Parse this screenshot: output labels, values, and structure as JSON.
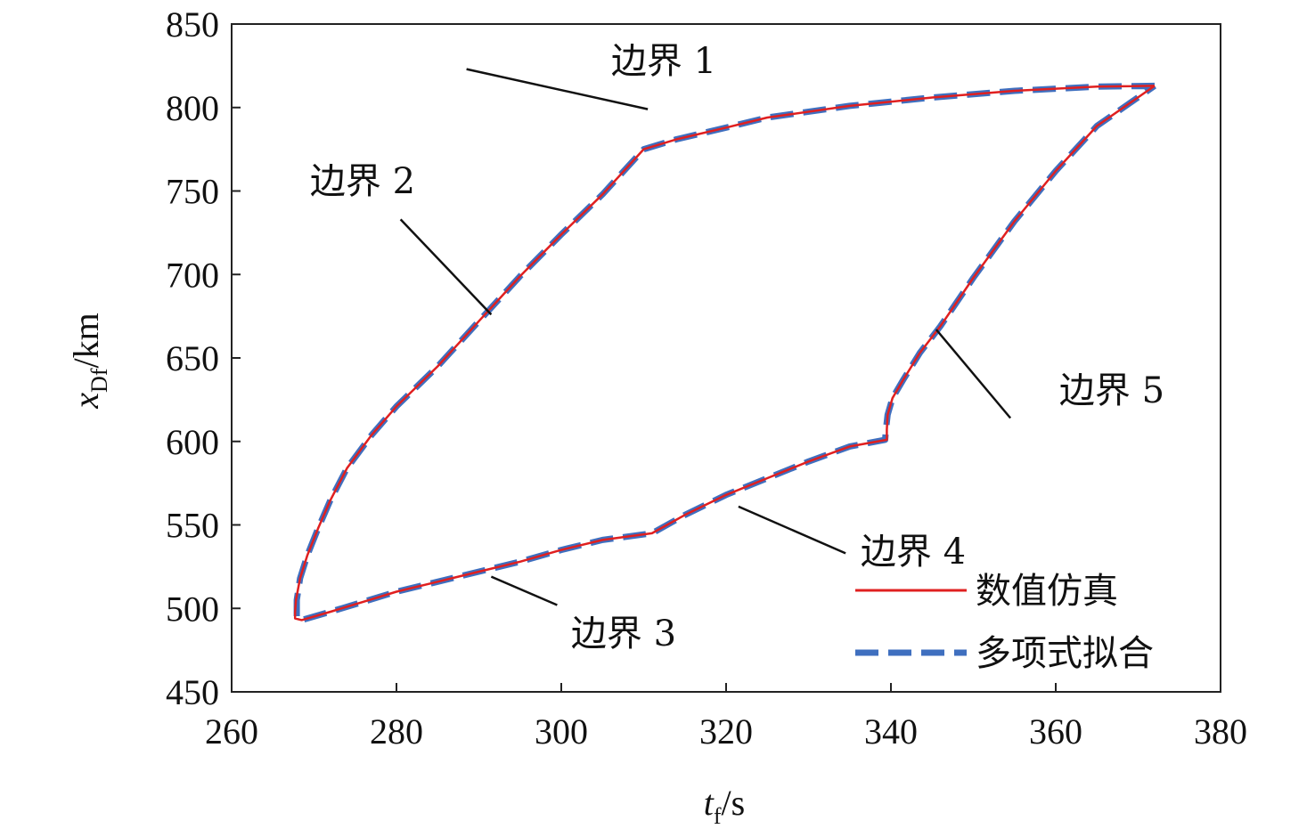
{
  "chart_data": {
    "type": "line",
    "xlabel": {
      "main": "t",
      "sub": "f",
      "unit": "/s"
    },
    "ylabel": {
      "main": "x",
      "sub": "Df",
      "unit": "/km"
    },
    "xlim": [
      260,
      380
    ],
    "ylim": [
      450,
      850
    ],
    "xticks": [
      260,
      280,
      300,
      320,
      340,
      360,
      380
    ],
    "yticks": [
      450,
      500,
      550,
      600,
      650,
      700,
      750,
      800,
      850
    ],
    "grid": false,
    "legend": {
      "position": "bottom-right"
    },
    "colors": {
      "numerical": "#e02020",
      "fit": "#3f6fbf"
    },
    "series": [
      {
        "name": "数值仿真",
        "style": "solid",
        "x": [
          372,
          365,
          355,
          345,
          335,
          325,
          320,
          314,
          310,
          305,
          300,
          295,
          290,
          285,
          280,
          277,
          274,
          272,
          270.5,
          269.2,
          268.3,
          267.8,
          267.7,
          267.7,
          268.5,
          272,
          276,
          280,
          285,
          290,
          295,
          300,
          305,
          311,
          315,
          320,
          325,
          330,
          335,
          339.5,
          339.5,
          339.6,
          340.2,
          341.5,
          343.5,
          346,
          350,
          355,
          360,
          365,
          372
        ],
        "y": [
          813,
          812.5,
          810,
          806,
          801,
          794,
          788,
          781,
          775,
          748,
          724,
          699,
          672,
          645,
          621,
          604,
          584,
          565,
          548,
          532,
          518,
          505,
          498,
          494,
          493,
          498,
          504,
          510,
          516,
          522,
          528,
          535,
          541,
          545,
          556,
          568,
          578,
          588,
          597,
          601,
          607,
          616,
          626,
          637,
          653,
          669,
          698,
          732,
          762,
          789,
          813
        ]
      },
      {
        "name": "多项式拟合",
        "style": "dashed",
        "x": [
          372,
          365,
          355,
          345,
          335,
          325,
          320,
          314,
          310,
          305,
          300,
          295,
          290,
          285,
          280,
          277,
          274,
          272,
          270.5,
          269.2,
          268.3,
          267.9,
          267.9,
          267.9,
          268.5,
          272,
          276,
          280,
          285,
          290,
          295,
          300,
          305,
          311,
          315,
          320,
          325,
          330,
          335,
          339.3,
          339.4,
          339.6,
          340.2,
          341.5,
          343.5,
          346,
          350,
          355,
          360,
          365,
          372
        ],
        "y": [
          813,
          812.5,
          810,
          806,
          801,
          794,
          788,
          781,
          775,
          748,
          724,
          699,
          672,
          645,
          621,
          604,
          584,
          565,
          548,
          532,
          518,
          505,
          498,
          494,
          493,
          498,
          504,
          510,
          516,
          522,
          528,
          535,
          541,
          545,
          556,
          568,
          578,
          588,
          597,
          601,
          607,
          616,
          626,
          637,
          653,
          669,
          698,
          732,
          762,
          789,
          813
        ]
      }
    ],
    "annotations": [
      {
        "label": "边界 1",
        "leader_from": [
          288.5,
          823
        ],
        "leader_to": [
          310.5,
          799
        ]
      },
      {
        "label": "边界 2",
        "leader_from": [
          280.5,
          733
        ],
        "leader_to": [
          291.5,
          676
        ]
      },
      {
        "label": "边界 3",
        "leader_from": [
          299.5,
          502
        ],
        "leader_to": [
          291.5,
          519
        ]
      },
      {
        "label": "边界 4",
        "leader_from": [
          334.5,
          533
        ],
        "leader_to": [
          321.5,
          561
        ]
      },
      {
        "label": "边界 5",
        "leader_from": [
          354.5,
          614
        ],
        "leader_to": [
          345.5,
          667
        ]
      }
    ]
  }
}
